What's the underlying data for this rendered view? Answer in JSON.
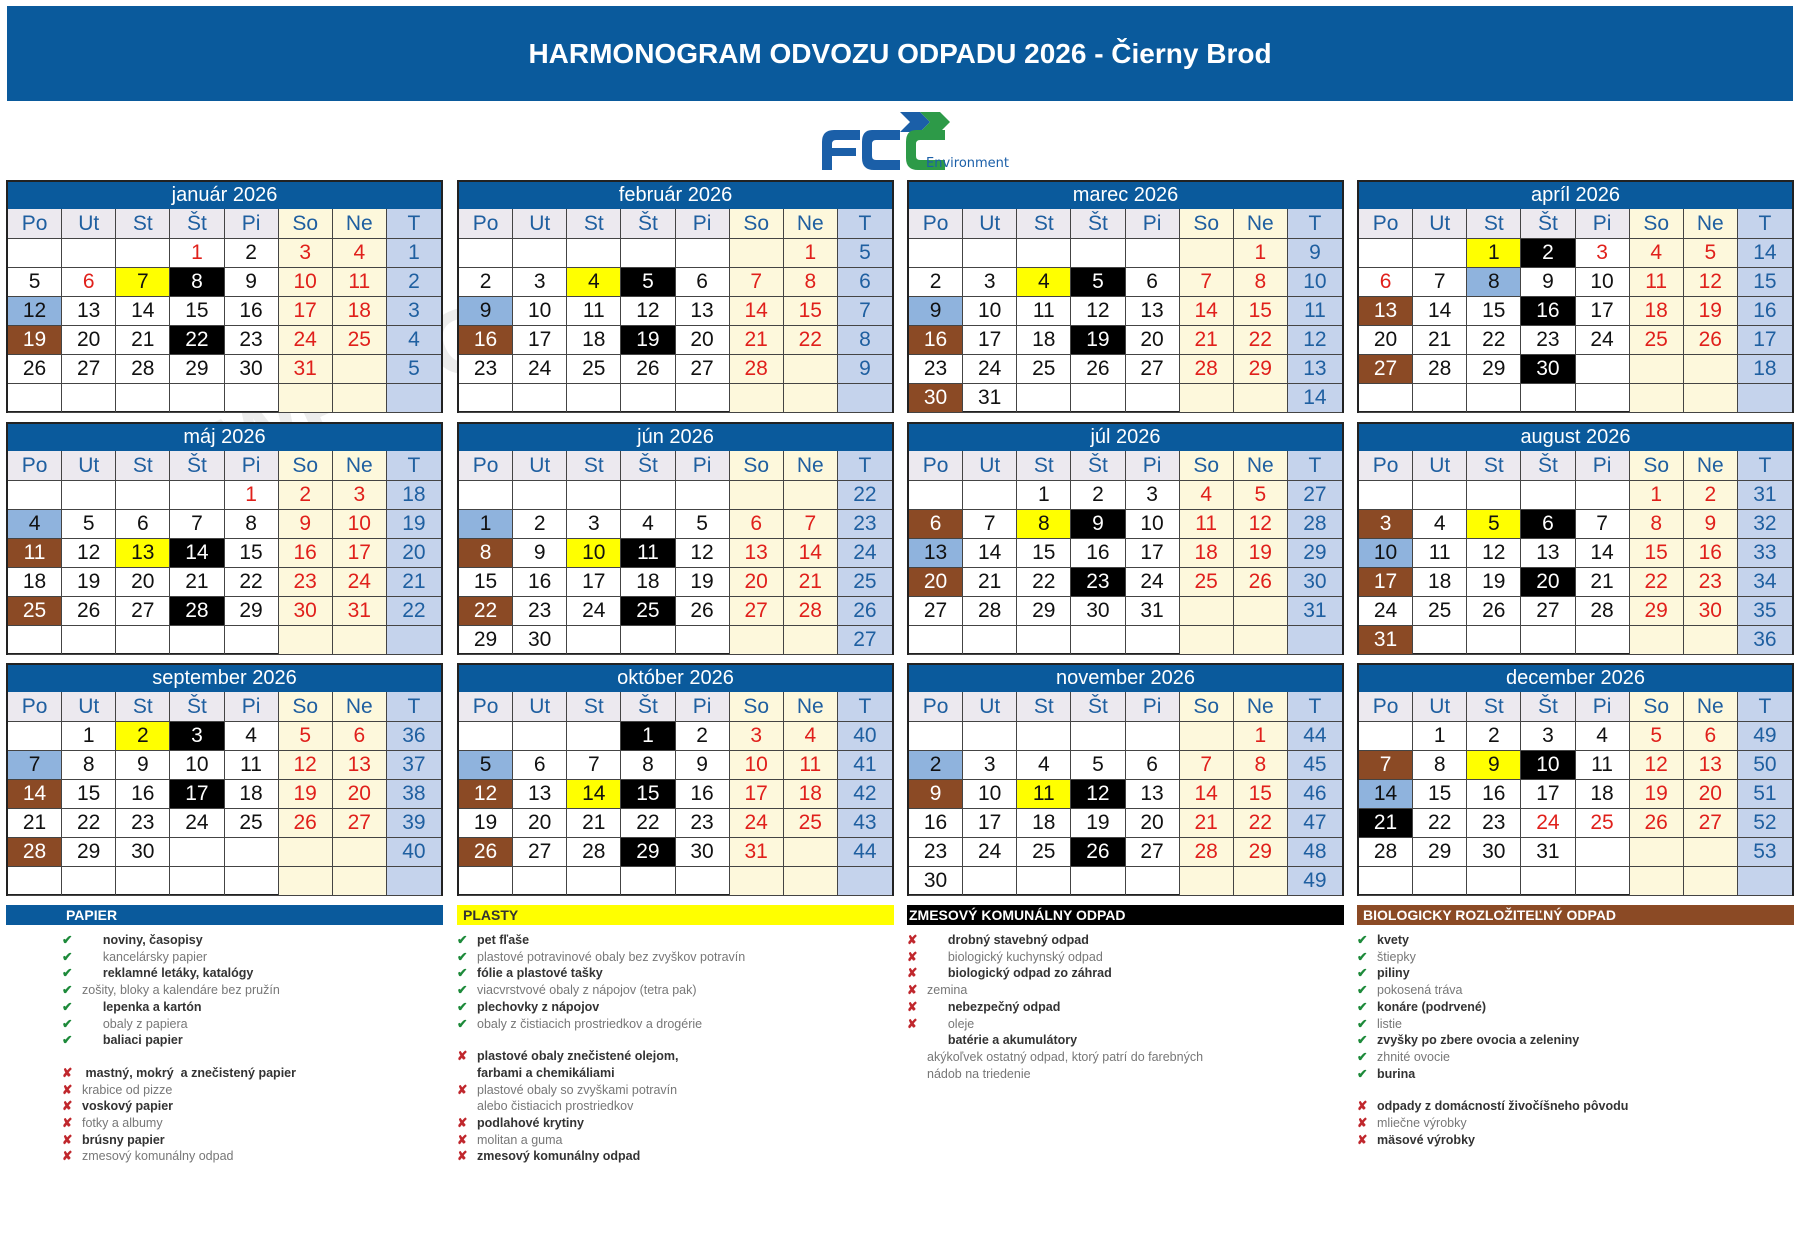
{
  "title": "HARMONOGRAM ODVOZU ODPADU 2026 - Čierny Brod",
  "logo": {
    "text": "FCC",
    "subtitle": "Environment"
  },
  "watermark": "WPS Office",
  "colors": {
    "header": "#0a5a9c",
    "paper": "#8fb3dd",
    "plastic": "#ffff00",
    "mixed": "#000000",
    "bio": "#8b4a25",
    "holiday": "#e0201b"
  },
  "day_names": [
    "Po",
    "Ut",
    "St",
    "Št",
    "Pi",
    "So",
    "Ne",
    "T"
  ],
  "months": [
    {
      "name": "január 2026",
      "rows": [
        [
          "",
          "",
          "",
          "1",
          "2",
          "3",
          "4",
          "1"
        ],
        [
          "5",
          "6",
          "7",
          "8",
          "9",
          "10",
          "11",
          "2"
        ],
        [
          "12",
          "13",
          "14",
          "15",
          "16",
          "17",
          "18",
          "3"
        ],
        [
          "19",
          "20",
          "21",
          "22",
          "23",
          "24",
          "25",
          "4"
        ],
        [
          "26",
          "27",
          "28",
          "29",
          "30",
          "31",
          "",
          "5"
        ],
        [
          "",
          "",
          "",
          "",
          "",
          "",
          "",
          ""
        ]
      ],
      "paper": [
        "12"
      ],
      "plastic": [
        "7"
      ],
      "mixed": [
        "8",
        "22"
      ],
      "bio": [
        "19"
      ],
      "holidays": [
        "1",
        "6"
      ]
    },
    {
      "name": "február 2026",
      "rows": [
        [
          "",
          "",
          "",
          "",
          "",
          "",
          "1",
          "5"
        ],
        [
          "2",
          "3",
          "4",
          "5",
          "6",
          "7",
          "8",
          "6"
        ],
        [
          "9",
          "10",
          "11",
          "12",
          "13",
          "14",
          "15",
          "7"
        ],
        [
          "16",
          "17",
          "18",
          "19",
          "20",
          "21",
          "22",
          "8"
        ],
        [
          "23",
          "24",
          "25",
          "26",
          "27",
          "28",
          "",
          "9"
        ],
        [
          "",
          "",
          "",
          "",
          "",
          "",
          "",
          ""
        ]
      ],
      "paper": [
        "9"
      ],
      "plastic": [
        "4"
      ],
      "mixed": [
        "5",
        "19"
      ],
      "bio": [
        "16"
      ],
      "holidays": []
    },
    {
      "name": "marec 2026",
      "rows": [
        [
          "",
          "",
          "",
          "",
          "",
          "",
          "1",
          "9"
        ],
        [
          "2",
          "3",
          "4",
          "5",
          "6",
          "7",
          "8",
          "10"
        ],
        [
          "9",
          "10",
          "11",
          "12",
          "13",
          "14",
          "15",
          "11"
        ],
        [
          "16",
          "17",
          "18",
          "19",
          "20",
          "21",
          "22",
          "12"
        ],
        [
          "23",
          "24",
          "25",
          "26",
          "27",
          "28",
          "29",
          "13"
        ],
        [
          "30",
          "31",
          "",
          "",
          "",
          "",
          "",
          "14"
        ]
      ],
      "paper": [
        "9"
      ],
      "plastic": [
        "4"
      ],
      "mixed": [
        "5",
        "19"
      ],
      "bio": [
        "16",
        "30"
      ],
      "holidays": []
    },
    {
      "name": "apríl 2026",
      "rows": [
        [
          "",
          "",
          "1",
          "2",
          "3",
          "4",
          "5",
          "14"
        ],
        [
          "6",
          "7",
          "8",
          "9",
          "10",
          "11",
          "12",
          "15"
        ],
        [
          "13",
          "14",
          "15",
          "16",
          "17",
          "18",
          "19",
          "16"
        ],
        [
          "20",
          "21",
          "22",
          "23",
          "24",
          "25",
          "26",
          "17"
        ],
        [
          "27",
          "28",
          "29",
          "30",
          "",
          "",
          "",
          "18"
        ],
        [
          "",
          "",
          "",
          "",
          "",
          "",
          "",
          ""
        ]
      ],
      "paper": [
        "8"
      ],
      "plastic": [
        "1"
      ],
      "mixed": [
        "2",
        "16",
        "30"
      ],
      "bio": [
        "13",
        "27"
      ],
      "holidays": [
        "3",
        "6"
      ]
    },
    {
      "name": "máj 2026",
      "rows": [
        [
          "",
          "",
          "",
          "",
          "1",
          "2",
          "3",
          "18"
        ],
        [
          "4",
          "5",
          "6",
          "7",
          "8",
          "9",
          "10",
          "19"
        ],
        [
          "11",
          "12",
          "13",
          "14",
          "15",
          "16",
          "17",
          "20"
        ],
        [
          "18",
          "19",
          "20",
          "21",
          "22",
          "23",
          "24",
          "21"
        ],
        [
          "25",
          "26",
          "27",
          "28",
          "29",
          "30",
          "31",
          "22"
        ],
        [
          "",
          "",
          "",
          "",
          "",
          "",
          "",
          ""
        ]
      ],
      "paper": [
        "4"
      ],
      "plastic": [
        "13"
      ],
      "mixed": [
        "14",
        "28"
      ],
      "bio": [
        "11",
        "25"
      ],
      "holidays": [
        "1"
      ]
    },
    {
      "name": "jún 2026",
      "rows": [
        [
          "",
          "",
          "",
          "",
          "",
          "",
          "",
          "22"
        ],
        [
          "1",
          "2",
          "3",
          "4",
          "5",
          "6",
          "7",
          "23"
        ],
        [
          "8",
          "9",
          "10",
          "11",
          "12",
          "13",
          "14",
          "24"
        ],
        [
          "15",
          "16",
          "17",
          "18",
          "19",
          "20",
          "21",
          "25"
        ],
        [
          "22",
          "23",
          "24",
          "25",
          "26",
          "27",
          "28",
          "26"
        ],
        [
          "29",
          "30",
          "",
          "",
          "",
          "",
          "",
          "27"
        ]
      ],
      "paper": [
        "1"
      ],
      "plastic": [
        "10"
      ],
      "mixed": [
        "11",
        "25"
      ],
      "bio": [
        "8",
        "22"
      ],
      "holidays": []
    },
    {
      "name": "júl 2026",
      "rows": [
        [
          "",
          "",
          "1",
          "2",
          "3",
          "4",
          "5",
          "27"
        ],
        [
          "6",
          "7",
          "8",
          "9",
          "10",
          "11",
          "12",
          "28"
        ],
        [
          "13",
          "14",
          "15",
          "16",
          "17",
          "18",
          "19",
          "29"
        ],
        [
          "20",
          "21",
          "22",
          "23",
          "24",
          "25",
          "26",
          "30"
        ],
        [
          "27",
          "28",
          "29",
          "30",
          "31",
          "",
          "",
          "31"
        ],
        [
          "",
          "",
          "",
          "",
          "",
          "",
          "",
          ""
        ]
      ],
      "paper": [
        "13"
      ],
      "plastic": [
        "8"
      ],
      "mixed": [
        "9",
        "23"
      ],
      "bio": [
        "6",
        "20"
      ],
      "holidays": []
    },
    {
      "name": "august 2026",
      "rows": [
        [
          "",
          "",
          "",
          "",
          "",
          "1",
          "2",
          "31"
        ],
        [
          "3",
          "4",
          "5",
          "6",
          "7",
          "8",
          "9",
          "32"
        ],
        [
          "10",
          "11",
          "12",
          "13",
          "14",
          "15",
          "16",
          "33"
        ],
        [
          "17",
          "18",
          "19",
          "20",
          "21",
          "22",
          "23",
          "34"
        ],
        [
          "24",
          "25",
          "26",
          "27",
          "28",
          "29",
          "30",
          "35"
        ],
        [
          "31",
          "",
          "",
          "",
          "",
          "",
          "",
          "36"
        ]
      ],
      "paper": [
        "10"
      ],
      "plastic": [
        "5"
      ],
      "mixed": [
        "6",
        "20"
      ],
      "bio": [
        "3",
        "17",
        "31"
      ],
      "holidays": []
    },
    {
      "name": "september 2026",
      "rows": [
        [
          "",
          "1",
          "2",
          "3",
          "4",
          "5",
          "6",
          "36"
        ],
        [
          "7",
          "8",
          "9",
          "10",
          "11",
          "12",
          "13",
          "37"
        ],
        [
          "14",
          "15",
          "16",
          "17",
          "18",
          "19",
          "20",
          "38"
        ],
        [
          "21",
          "22",
          "23",
          "24",
          "25",
          "26",
          "27",
          "39"
        ],
        [
          "28",
          "29",
          "30",
          "",
          "",
          "",
          "",
          "40"
        ],
        [
          "",
          "",
          "",
          "",
          "",
          "",
          "",
          ""
        ]
      ],
      "paper": [
        "7"
      ],
      "plastic": [
        "2"
      ],
      "mixed": [
        "3",
        "17"
      ],
      "bio": [
        "14",
        "28"
      ],
      "holidays": []
    },
    {
      "name": "október 2026",
      "rows": [
        [
          "",
          "",
          "",
          "1",
          "2",
          "3",
          "4",
          "40"
        ],
        [
          "5",
          "6",
          "7",
          "8",
          "9",
          "10",
          "11",
          "41"
        ],
        [
          "12",
          "13",
          "14",
          "15",
          "16",
          "17",
          "18",
          "42"
        ],
        [
          "19",
          "20",
          "21",
          "22",
          "23",
          "24",
          "25",
          "43"
        ],
        [
          "26",
          "27",
          "28",
          "29",
          "30",
          "31",
          "",
          "44"
        ],
        [
          "",
          "",
          "",
          "",
          "",
          "",
          "",
          ""
        ]
      ],
      "paper": [
        "5"
      ],
      "plastic": [
        "14"
      ],
      "mixed": [
        "1",
        "15",
        "29"
      ],
      "bio": [
        "12",
        "26"
      ],
      "holidays": []
    },
    {
      "name": "november 2026",
      "rows": [
        [
          "",
          "",
          "",
          "",
          "",
          "",
          "1",
          "44"
        ],
        [
          "2",
          "3",
          "4",
          "5",
          "6",
          "7",
          "8",
          "45"
        ],
        [
          "9",
          "10",
          "11",
          "12",
          "13",
          "14",
          "15",
          "46"
        ],
        [
          "16",
          "17",
          "18",
          "19",
          "20",
          "21",
          "22",
          "47"
        ],
        [
          "23",
          "24",
          "25",
          "26",
          "27",
          "28",
          "29",
          "48"
        ],
        [
          "30",
          "",
          "",
          "",
          "",
          "",
          "",
          "49"
        ]
      ],
      "paper": [
        "2"
      ],
      "plastic": [
        "11"
      ],
      "mixed": [
        "12",
        "26"
      ],
      "bio": [
        "9"
      ],
      "holidays": []
    },
    {
      "name": "december 2026",
      "rows": [
        [
          "",
          "1",
          "2",
          "3",
          "4",
          "5",
          "6",
          "49"
        ],
        [
          "7",
          "8",
          "9",
          "10",
          "11",
          "12",
          "13",
          "50"
        ],
        [
          "14",
          "15",
          "16",
          "17",
          "18",
          "19",
          "20",
          "51"
        ],
        [
          "21",
          "22",
          "23",
          "24",
          "25",
          "26",
          "27",
          "52"
        ],
        [
          "28",
          "29",
          "30",
          "31",
          "",
          "",
          "",
          "53"
        ],
        [
          "",
          "",
          "",
          "",
          "",
          "",
          "",
          ""
        ]
      ],
      "paper": [
        "14"
      ],
      "plastic": [
        "9"
      ],
      "mixed": [
        "10",
        "21"
      ],
      "bio": [
        "7"
      ],
      "holidays": [
        "24",
        "25"
      ]
    }
  ],
  "legend": [
    {
      "title": "PAPIER",
      "items": [
        {
          "mark": "check",
          "text": "      noviny, časopisy",
          "bold": true
        },
        {
          "mark": "check",
          "text": "      kancelársky papier"
        },
        {
          "mark": "check",
          "text": "      reklamné letáky, katalógy",
          "bold": true
        },
        {
          "mark": "check",
          "text": "zošity, bloky a kalendáre bez pružín"
        },
        {
          "mark": "check",
          "text": "      lepenka a kartón",
          "bold": true
        },
        {
          "mark": "check",
          "text": "      obaly z papiera"
        },
        {
          "mark": "check",
          "text": "      baliaci papier",
          "bold": true
        },
        {
          "gap": true
        },
        {
          "mark": "x",
          "text": " mastný, mokrý  a znečistený papier",
          "bold": true
        },
        {
          "mark": "x",
          "text": "krabice od pizze"
        },
        {
          "mark": "x",
          "text": "voskový papier",
          "bold": true
        },
        {
          "mark": "x",
          "text": "fotky a albumy"
        },
        {
          "mark": "x",
          "text": "brúsny papier",
          "bold": true
        },
        {
          "mark": "x",
          "text": "zmesový komunálny odpad"
        }
      ]
    },
    {
      "title": "PLASTY",
      "items": [
        {
          "mark": "check",
          "text": "pet fľaše",
          "bold": true
        },
        {
          "mark": "check",
          "text": "plastové potravinové obaly bez zvyškov potravín"
        },
        {
          "mark": "check",
          "text": "fólie a plastové tašky",
          "bold": true
        },
        {
          "mark": "check",
          "text": "viacvrstvové obaly z nápojov (tetra pak)"
        },
        {
          "mark": "check",
          "text": "plechovky z nápojov",
          "bold": true
        },
        {
          "mark": "check",
          "text": "obaly z čistiacich prostriedkov a drogérie"
        },
        {
          "gap": true
        },
        {
          "mark": "x",
          "text": "plastové obaly znečistené olejom,",
          "bold": true
        },
        {
          "mark": "none",
          "text": "farbami a chemikáliami",
          "bold": true
        },
        {
          "mark": "x",
          "text": "plastové obaly so zvyškami potravín"
        },
        {
          "mark": "none",
          "text": "alebo čistiacich prostriedkov"
        },
        {
          "mark": "x",
          "text": "podlahové krytiny",
          "bold": true
        },
        {
          "mark": "x",
          "text": "molitan a guma"
        },
        {
          "mark": "x",
          "text": "zmesový komunálny odpad",
          "bold": true
        }
      ]
    },
    {
      "title": "ZMESOVÝ KOMUNÁLNY ODPAD",
      "items": [
        {
          "mark": "x",
          "text": "      drobný stavebný odpad",
          "bold": true
        },
        {
          "mark": "x",
          "text": "      biologický kuchynský odpad"
        },
        {
          "mark": "x",
          "text": "      biologický odpad zo záhrad",
          "bold": true
        },
        {
          "mark": "x",
          "text": "zemina"
        },
        {
          "mark": "x",
          "text": "      nebezpečný odpad",
          "bold": true
        },
        {
          "mark": "x",
          "text": "      oleje"
        },
        {
          "mark": "none",
          "text": "      batérie a akumulátory",
          "bold": true
        },
        {
          "mark": "none",
          "text": "akýkoľvek ostatný odpad, ktorý patrí do farebných"
        },
        {
          "mark": "none",
          "text": "nádob na triedenie"
        }
      ]
    },
    {
      "title": "BIOLOGICKY ROZLOŽITEĽNÝ ODPAD",
      "items": [
        {
          "mark": "check",
          "text": "kvety",
          "bold": true
        },
        {
          "mark": "check",
          "text": "štiepky"
        },
        {
          "mark": "check",
          "text": "piliny",
          "bold": true
        },
        {
          "mark": "check",
          "text": "pokosená tráva"
        },
        {
          "mark": "check",
          "text": "konáre (podrvené)",
          "bold": true
        },
        {
          "mark": "check",
          "text": "listie"
        },
        {
          "mark": "check",
          "text": "zvyšky po zbere ovocia a zeleniny",
          "bold": true
        },
        {
          "mark": "check",
          "text": "zhnité ovocie"
        },
        {
          "mark": "check",
          "text": "burina",
          "bold": true
        },
        {
          "gap": true
        },
        {
          "mark": "x",
          "text": "odpady z domácností živočíšneho pôvodu",
          "bold": true
        },
        {
          "mark": "x",
          "text": "mliečne výrobky"
        },
        {
          "mark": "x",
          "text": "mäsové výrobky",
          "bold": true
        }
      ]
    }
  ]
}
